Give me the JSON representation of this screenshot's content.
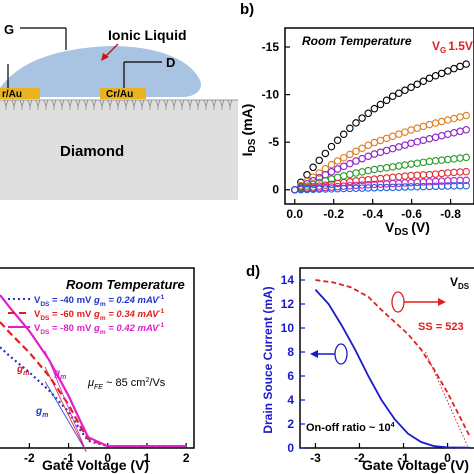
{
  "panel_a": {
    "gate_label": "G",
    "ionic_label": "Ionic Liquid",
    "drain_label": "D",
    "contact_left": "r/Au",
    "contact_right": "Cr/Au",
    "substrate_label": "Diamond",
    "colors": {
      "liquid": "#a9c3e2",
      "contact": "#e8b320",
      "substrate": "#dedede"
    }
  },
  "panel_b": {
    "panel_label": "b)",
    "title": "Room Temperature",
    "vg_label": "V",
    "vg_sub": "G",
    "vg_value": "1.5V",
    "ylabel_main": "I",
    "ylabel_sub": "DS",
    "ylabel_unit": "(mA)",
    "xlabel_main": "V",
    "xlabel_sub": "DS",
    "xlabel_unit": "(V)",
    "x_ticks": [
      "0.0",
      "-0.2",
      "-0.4",
      "-0.6",
      "-0.8"
    ],
    "y_ticks": [
      "-15",
      "-10",
      "-5",
      "0"
    ],
    "colors": {
      "vg": "#e02020"
    }
  },
  "panel_c": {
    "title": "Room Temperature",
    "legend": [
      {
        "v": "V",
        "sub": "DS",
        "val": " = -40 mV",
        "gm": "g",
        "gsub": "m",
        "gval": " = 0.24 mAV",
        "sup": "-1",
        "color": "#2233cc"
      },
      {
        "v": "V",
        "sub": "DS",
        "val": " = -60 mV",
        "gm": "g",
        "gsub": "m",
        "gval": " = 0.34 mAV",
        "sup": "-1",
        "color": "#e02020"
      },
      {
        "v": "V",
        "sub": "DS",
        "val": " = -80 mV",
        "gm": "g",
        "gsub": "m",
        "gval": " = 0.42 mAV",
        "sup": "-1",
        "color": "#e020c8"
      }
    ],
    "mobility_mu": "μ",
    "mobility_sub": "FE",
    "mobility_val": " ~ 85 cm",
    "mobility_sup": "2",
    "mobility_unit": "/Vs",
    "gm_main": "g",
    "gm_sub": "m",
    "xlabel": "Gate Voltage (V)",
    "x_ticks": [
      "-2",
      "-1",
      "0",
      "1",
      "2"
    ]
  },
  "panel_d": {
    "panel_label": "d)",
    "vds_main": "V",
    "vds_sub": "DS",
    "ylabel": "Drain Souce Current (mA)",
    "ss_label": "SS = 523",
    "onoff_label": "On-off ratio ~ 10",
    "onoff_sup": "4",
    "xlabel": "Gate Voltage (V)",
    "x_ticks": [
      "-3",
      "-2",
      "-1",
      "0"
    ],
    "y_ticks": [
      "14",
      "12",
      "10",
      "8",
      "6",
      "4",
      "2",
      "0"
    ],
    "colors": {
      "blue": "#1a1acc",
      "red": "#e02020"
    }
  },
  "chart_data": [
    {
      "panel": "b",
      "type": "scatter",
      "title": "Room Temperature",
      "xlabel": "VDS (V)",
      "ylabel": "IDS (mA)",
      "xlim": [
        0.05,
        -0.92
      ],
      "ylim": [
        1.5,
        -17
      ],
      "x_ticks": [
        0.0,
        -0.2,
        -0.4,
        -0.6,
        -0.8
      ],
      "y_ticks": [
        -15,
        -10,
        -5,
        0
      ],
      "series": [
        {
          "name": "VG 1.5V",
          "color": "#000000",
          "x": [
            0,
            -0.1,
            -0.2,
            -0.3,
            -0.4,
            -0.5,
            -0.6,
            -0.7,
            -0.8,
            -0.88
          ],
          "y": [
            0,
            -2.5,
            -4.8,
            -6.8,
            -8.4,
            -9.8,
            -10.8,
            -11.8,
            -12.6,
            -13.2
          ]
        },
        {
          "color": "#e07a20",
          "x": [
            0,
            -0.1,
            -0.2,
            -0.3,
            -0.4,
            -0.5,
            -0.6,
            -0.7,
            -0.8,
            -0.88
          ],
          "y": [
            0,
            -1.4,
            -2.8,
            -3.9,
            -4.9,
            -5.6,
            -6.3,
            -6.9,
            -7.4,
            -7.8
          ]
        },
        {
          "color": "#8a20c8",
          "x": [
            0,
            -0.1,
            -0.2,
            -0.3,
            -0.4,
            -0.5,
            -0.6,
            -0.7,
            -0.8,
            -0.88
          ],
          "y": [
            0,
            -1.0,
            -2.0,
            -2.9,
            -3.7,
            -4.3,
            -4.9,
            -5.4,
            -5.9,
            -6.3
          ]
        },
        {
          "color": "#2a9a2a",
          "x": [
            0,
            -0.1,
            -0.2,
            -0.3,
            -0.4,
            -0.5,
            -0.6,
            -0.7,
            -0.8,
            -0.88
          ],
          "y": [
            0,
            -0.6,
            -1.2,
            -1.7,
            -2.1,
            -2.4,
            -2.7,
            -3.0,
            -3.2,
            -3.4
          ]
        },
        {
          "color": "#e03030",
          "x": [
            0,
            -0.1,
            -0.2,
            -0.3,
            -0.4,
            -0.5,
            -0.6,
            -0.7,
            -0.8,
            -0.88
          ],
          "y": [
            0,
            -0.3,
            -0.6,
            -0.9,
            -1.1,
            -1.3,
            -1.5,
            -1.6,
            -1.8,
            -1.9
          ]
        },
        {
          "color": "#c020c0",
          "x": [
            0,
            -0.1,
            -0.2,
            -0.3,
            -0.4,
            -0.5,
            -0.6,
            -0.7,
            -0.8,
            -0.88
          ],
          "y": [
            0,
            -0.15,
            -0.3,
            -0.45,
            -0.55,
            -0.65,
            -0.75,
            -0.85,
            -0.95,
            -1.0
          ]
        },
        {
          "color": "#2060e0",
          "x": [
            0,
            -0.1,
            -0.2,
            -0.3,
            -0.4,
            -0.5,
            -0.6,
            -0.7,
            -0.8,
            -0.88
          ],
          "y": [
            0,
            -0.05,
            -0.1,
            -0.15,
            -0.2,
            -0.25,
            -0.3,
            -0.35,
            -0.4,
            -0.42
          ]
        }
      ]
    },
    {
      "panel": "c",
      "type": "line",
      "title": "Room Temperature",
      "xlabel": "Gate Voltage (V)",
      "xlim": [
        -2.75,
        2.2
      ],
      "ylim": [
        0,
        1
      ],
      "x_ticks": [
        -2,
        -1,
        0,
        1,
        2
      ],
      "series": [
        {
          "name": "VDS = -40 mV",
          "color": "#2233cc",
          "style": "dotted",
          "x": [
            -2.75,
            -2.5,
            -2.0,
            -1.5,
            -1.0,
            -0.7,
            -0.5,
            0,
            1,
            2
          ],
          "y": [
            0.56,
            0.51,
            0.42,
            0.32,
            0.2,
            0.1,
            0.04,
            0.01,
            0.01,
            0.01
          ]
        },
        {
          "name": "VDS = -60 mV",
          "color": "#e02020",
          "style": "dashed",
          "x": [
            -2.75,
            -2.5,
            -2.0,
            -1.5,
            -1.0,
            -0.7,
            -0.5,
            0,
            1,
            2
          ],
          "y": [
            0.7,
            0.64,
            0.53,
            0.4,
            0.24,
            0.12,
            0.05,
            0.01,
            0.01,
            0.01
          ]
        },
        {
          "name": "VDS = -80 mV",
          "color": "#e020c8",
          "style": "solid",
          "x": [
            -2.75,
            -2.5,
            -2.0,
            -1.5,
            -1.0,
            -0.7,
            -0.5,
            0,
            1,
            2
          ],
          "y": [
            0.85,
            0.78,
            0.65,
            0.49,
            0.29,
            0.15,
            0.06,
            0.01,
            0.01,
            0.01
          ]
        }
      ]
    },
    {
      "panel": "d",
      "type": "line",
      "xlabel": "Gate Voltage (V)",
      "ylabel": "Drain Souce Current (mA)",
      "xlim": [
        -3.35,
        0.6
      ],
      "ylim": [
        0,
        15
      ],
      "x_ticks": [
        -3,
        -2,
        -1,
        0
      ],
      "y_ticks": [
        0,
        2,
        4,
        6,
        8,
        10,
        12,
        14
      ],
      "series": [
        {
          "color": "#1a1acc",
          "style": "solid",
          "x": [
            -3.0,
            -2.7,
            -2.4,
            -2.1,
            -1.8,
            -1.5,
            -1.2,
            -0.9,
            -0.6,
            -0.3,
            0.0,
            0.5
          ],
          "y": [
            13.2,
            12.0,
            10.2,
            8.2,
            6.0,
            4.0,
            2.4,
            1.2,
            0.5,
            0.15,
            0.05,
            0.03
          ]
        },
        {
          "color": "#e02020",
          "style": "dashed",
          "x": [
            -3.0,
            -2.6,
            -2.2,
            -1.8,
            -1.5,
            -1.2,
            -0.9,
            -0.6,
            -0.3,
            0.0,
            0.5
          ],
          "y": [
            14.0,
            13.8,
            13.4,
            12.6,
            11.5,
            10.5,
            9.5,
            8.2,
            6.5,
            4.6,
            1.0
          ]
        }
      ]
    }
  ]
}
